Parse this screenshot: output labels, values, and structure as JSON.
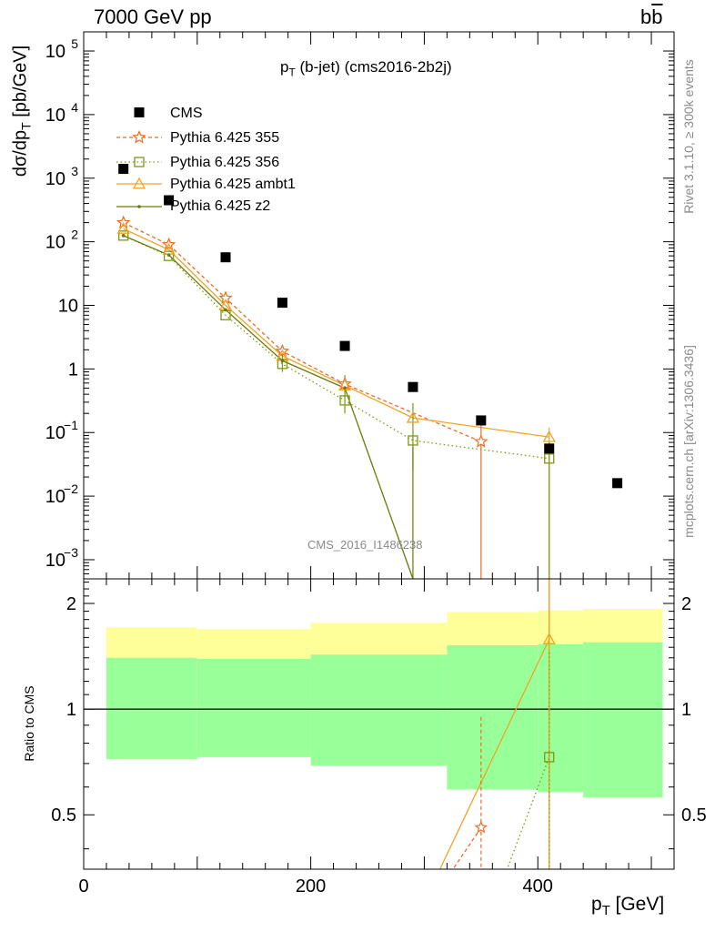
{
  "header": {
    "left": "7000 GeV pp",
    "right_main": "b",
    "right_bar": "b"
  },
  "title": {
    "main": "p",
    "sub": "T",
    "rest": "(b-jet) (cms2016-2b2j)"
  },
  "watermark": "CMS_2016_I1486238",
  "side": {
    "rivet": "Rivet 3.1.10, ≥ 300k events",
    "mcplots": "mcplots.cern.ch [arXiv:1306.3436]"
  },
  "yaxis": {
    "pre": "dσ/dp",
    "sub": "T",
    "post": "[pb/GeV]"
  },
  "ratio_label": "Ratio to CMS",
  "xaxis": {
    "main": "p",
    "sub": "T",
    "post": "[GeV]"
  },
  "chart_data": {
    "type": "scatter",
    "main_panel": {
      "xlim": [
        0,
        520
      ],
      "ylim": [
        0.0005,
        200000
      ],
      "yscale": "log",
      "yticks": [
        {
          "v": 0.001,
          "b": "10",
          "e": "−3"
        },
        {
          "v": 0.01,
          "b": "10",
          "e": "−2"
        },
        {
          "v": 0.1,
          "b": "10",
          "e": "−1"
        },
        {
          "v": 1,
          "b": "1",
          "e": ""
        },
        {
          "v": 10,
          "b": "10",
          "e": ""
        },
        {
          "v": 100,
          "b": "10",
          "e": "2"
        },
        {
          "v": 1000,
          "b": "10",
          "e": "3"
        },
        {
          "v": 10000,
          "b": "10",
          "e": "4"
        },
        {
          "v": 100000,
          "b": "10",
          "e": "5"
        }
      ],
      "legend": [
        {
          "name": "CMS",
          "color": "#000000",
          "marker": "square-filled",
          "line": "none"
        },
        {
          "name": "Pythia 6.425 355",
          "color": "#ee6a22",
          "marker": "star",
          "line": "dashed"
        },
        {
          "name": "Pythia 6.425 356",
          "color": "#7a9a10",
          "marker": "square-open",
          "line": "dotted"
        },
        {
          "name": "Pythia 6.425 ambt1",
          "color": "#f0a424",
          "marker": "triangle-open",
          "line": "solid"
        },
        {
          "name": "Pythia 6.425 z2",
          "color": "#6b7a08",
          "marker": "dot",
          "line": "solid"
        }
      ],
      "data": {
        "x": [
          35,
          75,
          125,
          175,
          230,
          290,
          350,
          410,
          470
        ],
        "cms": [
          1400,
          450,
          57,
          11,
          2.3,
          0.52,
          0.155,
          0.056,
          0.016
        ],
        "p355": [
          200,
          90,
          13,
          1.9,
          0.58,
          null,
          0.072,
          null,
          null
        ],
        "p356": [
          125,
          60,
          7,
          1.2,
          0.32,
          0.075,
          null,
          0.039,
          null
        ],
        "ambt1": [
          160,
          75,
          10,
          1.6,
          0.55,
          0.17,
          null,
          0.085,
          null
        ],
        "z2": [
          125,
          62,
          8.5,
          1.35,
          0.5,
          0.0005,
          null,
          null,
          null
        ]
      }
    },
    "ratio_panel": {
      "ylim": [
        0.35,
        2.35
      ],
      "yticks": [
        0.5,
        1,
        2
      ],
      "xticks": [
        0,
        200,
        400
      ],
      "bands": [
        {
          "x0": 20,
          "x1": 100,
          "y_lo": 0.72,
          "y_hi": 1.71,
          "g_lo": 0.72,
          "g_hi": 1.4
        },
        {
          "x0": 100,
          "x1": 200,
          "y_lo": 0.73,
          "y_hi": 1.69,
          "g_lo": 0.73,
          "g_hi": 1.39
        },
        {
          "x0": 200,
          "x1": 320,
          "y_lo": 0.69,
          "y_hi": 1.76,
          "g_lo": 0.69,
          "g_hi": 1.43
        },
        {
          "x0": 320,
          "x1": 400,
          "y_lo": 0.59,
          "y_hi": 1.89,
          "g_lo": 0.59,
          "g_hi": 1.52
        },
        {
          "x0": 400,
          "x1": 440,
          "y_lo": 0.58,
          "y_hi": 1.91,
          "g_lo": 0.58,
          "g_hi": 1.53
        },
        {
          "x0": 440,
          "x1": 510,
          "y_lo": 0.56,
          "y_hi": 1.93,
          "g_lo": 0.56,
          "g_hi": 1.55
        }
      ],
      "ratios": {
        "p355": {
          "x": [
            350
          ],
          "y": [
            0.46
          ]
        },
        "p356": {
          "x": [
            410
          ],
          "y": [
            0.73
          ]
        },
        "ambt1": {
          "x": [
            410
          ],
          "y": [
            1.58
          ]
        }
      }
    }
  }
}
